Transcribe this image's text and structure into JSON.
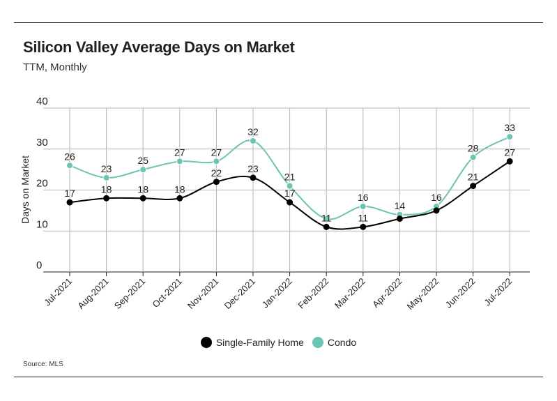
{
  "title": "Silicon Valley Average Days on Market",
  "subtitle": "TTM, Monthly",
  "source": "Source:  MLS",
  "colors": {
    "sfh": "#000000",
    "condo": "#6cc4b2",
    "grid": "#b5b5b5",
    "axis": "#231f20"
  },
  "chart_data": {
    "type": "line",
    "title": "Silicon Valley Average Days on Market",
    "subtitle": "TTM, Monthly",
    "xlabel": "",
    "ylabel": "Days on Market",
    "ylim": [
      0,
      40
    ],
    "yticks": [
      "0",
      "10",
      "20",
      "30",
      "40"
    ],
    "grid": true,
    "legend_position": "bottom-center",
    "categories": [
      "Jul-2021",
      "Aug-2021",
      "Sep-2021",
      "Oct-2021",
      "Nov-2021",
      "Dec-2021",
      "Jan-2022",
      "Feb-2022",
      "Mar-2022",
      "Apr-2022",
      "May-2022",
      "Jun-2022",
      "Jul-2022"
    ],
    "series": [
      {
        "name": "Single-Family Home",
        "color": "#000000",
        "values": [
          17,
          18,
          18,
          18,
          22,
          23,
          17,
          11,
          11,
          13,
          15,
          21,
          27
        ],
        "labels": [
          "17",
          "18",
          "18",
          "18",
          "22",
          "23",
          "17",
          "11",
          "11",
          null,
          null,
          "21",
          "27"
        ]
      },
      {
        "name": "Condo",
        "color": "#6cc4b2",
        "values": [
          26,
          23,
          25,
          27,
          27,
          32,
          21,
          13,
          16,
          14,
          16,
          28,
          33
        ],
        "labels": [
          "26",
          "23",
          "25",
          "27",
          "27",
          "32",
          "21",
          null,
          "16",
          "14",
          "16",
          "28",
          "33"
        ]
      }
    ]
  }
}
